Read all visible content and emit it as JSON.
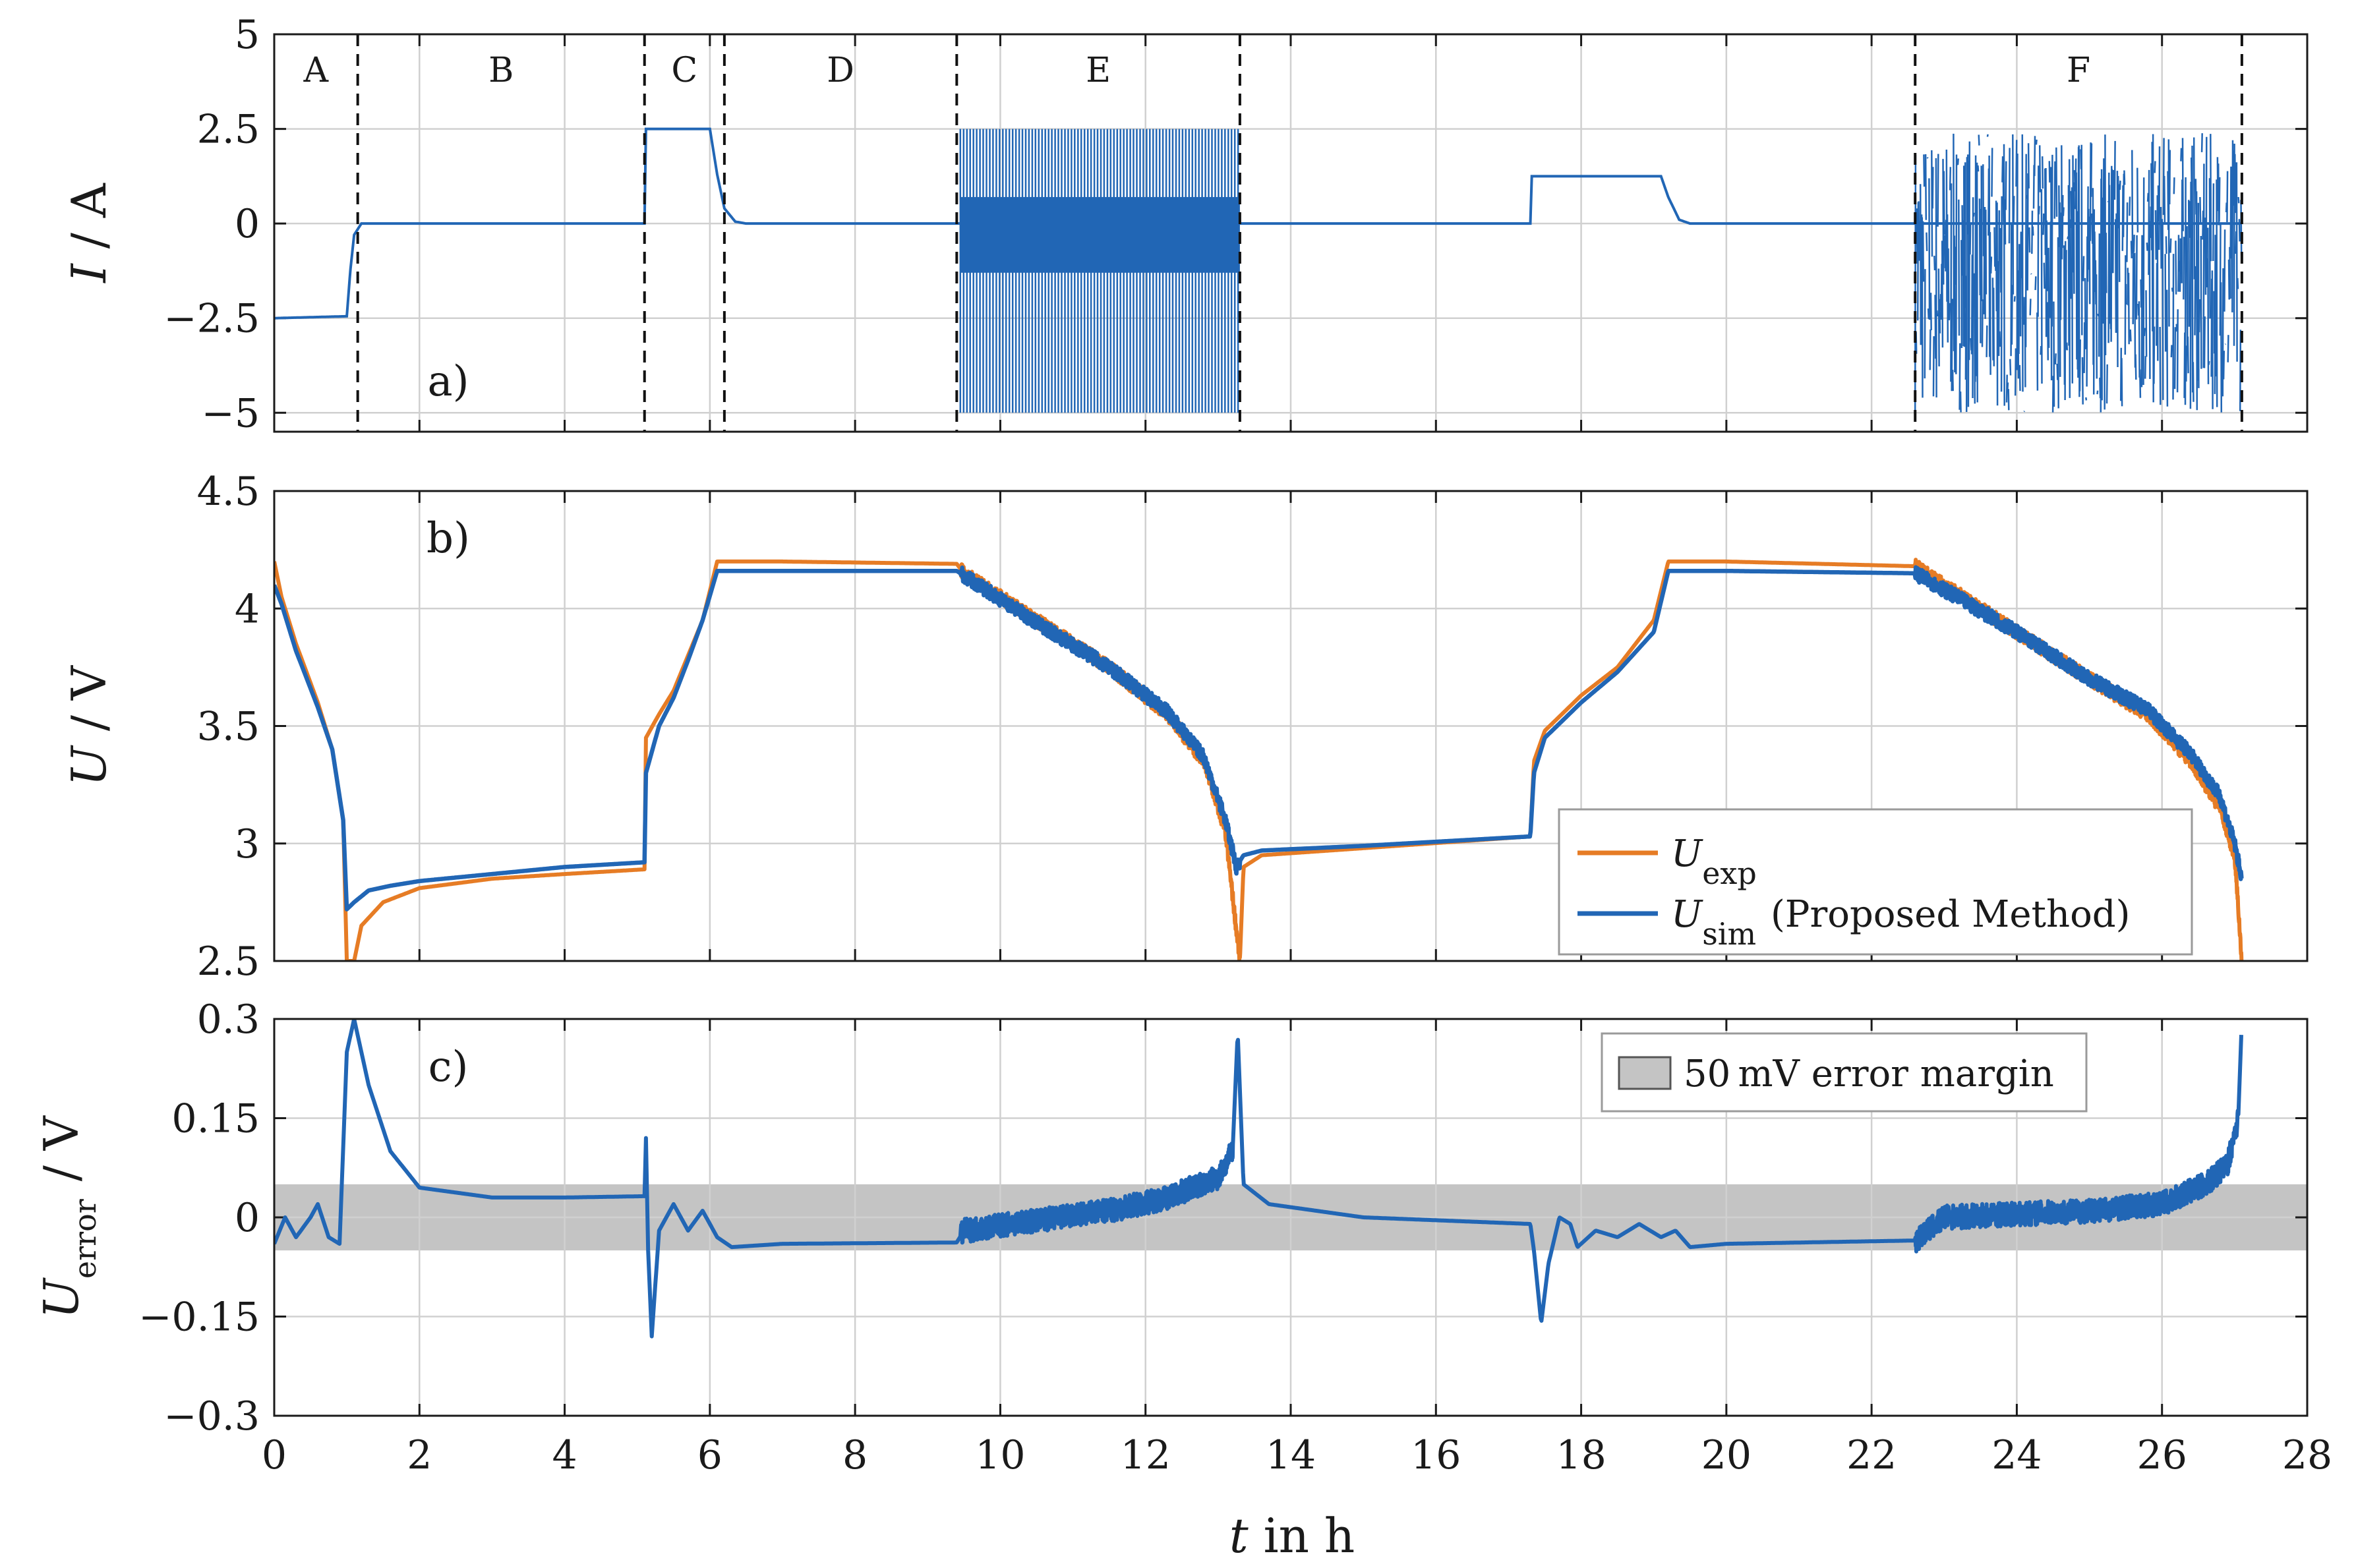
{
  "colors": {
    "current": "#2166b5",
    "u_exp": "#e67c25",
    "u_sim": "#2166b5",
    "margin_band": "#c4c4c4",
    "grid": "#d0d0d0"
  },
  "x_axis": {
    "label_var": "t",
    "label_rest": " in h",
    "ticks": [
      "0",
      "2",
      "4",
      "6",
      "8",
      "10",
      "12",
      "14",
      "16",
      "18",
      "20",
      "22",
      "24",
      "26",
      "28"
    ],
    "lim": [
      0,
      28
    ]
  },
  "chart_data": [
    {
      "type": "line",
      "panel_label": "a)",
      "ylabel_var": "I",
      "ylabel_unit": " / A",
      "ylim": [
        -5.5,
        5
      ],
      "yticks": [
        "5",
        "2.5",
        "0",
        "−2.5",
        "−5"
      ],
      "ytick_values": [
        5,
        2.5,
        0,
        -2.5,
        -5
      ],
      "grid": true,
      "segments": [
        "A",
        "B",
        "C",
        "D",
        "E",
        "F"
      ],
      "segment_boundaries_h": [
        1.15,
        5.1,
        6.2,
        9.4,
        13.3,
        22.6,
        27.1
      ],
      "series": [
        {
          "points": [
            [
              0,
              -2.5
            ],
            [
              1.0,
              -2.45
            ],
            [
              1.05,
              -1.2
            ],
            [
              1.1,
              -0.3
            ],
            [
              1.2,
              0
            ],
            [
              5.1,
              0
            ],
            [
              5.12,
              2.5
            ],
            [
              6.0,
              2.5
            ],
            [
              6.1,
              1.3
            ],
            [
              6.2,
              0.4
            ],
            [
              6.35,
              0.05
            ],
            [
              6.5,
              0
            ],
            [
              9.45,
              0
            ],
            [
              13.3,
              0
            ],
            [
              17.3,
              0
            ],
            [
              17.32,
              1.25
            ],
            [
              19.1,
              1.25
            ],
            [
              19.2,
              0.7
            ],
            [
              19.35,
              0.1
            ],
            [
              19.5,
              0
            ],
            [
              22.6,
              0
            ],
            [
              27.1,
              0
            ]
          ],
          "pulse_blocks": [
            {
              "t_start": 9.45,
              "t_end": 13.3,
              "max": 2.5,
              "min": -5.0,
              "band_max": 0.7,
              "band_min": -1.3
            },
            {
              "t_start": 22.6,
              "t_end": 27.1,
              "max": 2.4,
              "min": -5.0,
              "random": true
            }
          ]
        }
      ]
    },
    {
      "type": "line",
      "panel_label": "b)",
      "ylabel_var": "U",
      "ylabel_unit": " / V",
      "ylim": [
        2.5,
        4.5
      ],
      "yticks": [
        "4.5",
        "4",
        "3.5",
        "3",
        "2.5"
      ],
      "ytick_values": [
        4.5,
        4.0,
        3.5,
        3.0,
        2.5
      ],
      "grid": true,
      "legend_position": "bottom-right",
      "series": [
        {
          "name_var": "U",
          "name_sub": "exp",
          "name_rest": "",
          "points": [
            [
              0,
              4.2
            ],
            [
              0.1,
              4.05
            ],
            [
              0.3,
              3.85
            ],
            [
              0.6,
              3.6
            ],
            [
              0.8,
              3.4
            ],
            [
              0.95,
              3.1
            ],
            [
              1.0,
              2.5
            ],
            [
              1.1,
              2.5
            ],
            [
              1.2,
              2.65
            ],
            [
              1.5,
              2.75
            ],
            [
              2.0,
              2.81
            ],
            [
              3.0,
              2.85
            ],
            [
              4.0,
              2.87
            ],
            [
              5.1,
              2.89
            ],
            [
              5.12,
              3.45
            ],
            [
              5.3,
              3.55
            ],
            [
              5.5,
              3.65
            ],
            [
              5.7,
              3.8
            ],
            [
              5.9,
              3.95
            ],
            [
              6.1,
              4.2
            ],
            [
              7.0,
              4.2
            ],
            [
              9.4,
              4.19
            ],
            [
              9.5,
              4.15
            ],
            [
              10.5,
              3.95
            ],
            [
              11.5,
              3.75
            ],
            [
              12.3,
              3.55
            ],
            [
              12.8,
              3.35
            ],
            [
              13.1,
              3.05
            ],
            [
              13.3,
              2.5
            ],
            [
              13.35,
              2.9
            ],
            [
              13.6,
              2.95
            ],
            [
              15.0,
              2.98
            ],
            [
              17.3,
              3.03
            ],
            [
              17.35,
              3.35
            ],
            [
              17.5,
              3.48
            ],
            [
              18.0,
              3.63
            ],
            [
              18.5,
              3.75
            ],
            [
              19.0,
              3.95
            ],
            [
              19.2,
              4.2
            ],
            [
              20.0,
              4.2
            ],
            [
              22.6,
              4.18
            ],
            [
              23.0,
              4.1
            ],
            [
              24.0,
              3.9
            ],
            [
              25.0,
              3.7
            ],
            [
              25.8,
              3.55
            ],
            [
              26.4,
              3.35
            ],
            [
              26.8,
              3.15
            ],
            [
              27.0,
              2.95
            ],
            [
              27.1,
              2.5
            ]
          ]
        },
        {
          "name_var": "U",
          "name_sub": "sim",
          "name_rest": " (Proposed Method)",
          "points": [
            [
              0,
              4.1
            ],
            [
              0.1,
              4.02
            ],
            [
              0.3,
              3.82
            ],
            [
              0.6,
              3.58
            ],
            [
              0.8,
              3.4
            ],
            [
              0.95,
              3.1
            ],
            [
              1.0,
              2.72
            ],
            [
              1.1,
              2.75
            ],
            [
              1.3,
              2.8
            ],
            [
              1.6,
              2.82
            ],
            [
              2.0,
              2.84
            ],
            [
              3.0,
              2.87
            ],
            [
              4.0,
              2.9
            ],
            [
              5.1,
              2.92
            ],
            [
              5.12,
              3.3
            ],
            [
              5.3,
              3.5
            ],
            [
              5.5,
              3.62
            ],
            [
              5.7,
              3.78
            ],
            [
              5.9,
              3.95
            ],
            [
              6.1,
              4.16
            ],
            [
              7.0,
              4.16
            ],
            [
              9.4,
              4.16
            ],
            [
              9.5,
              4.14
            ],
            [
              10.5,
              3.94
            ],
            [
              11.5,
              3.75
            ],
            [
              12.3,
              3.56
            ],
            [
              12.8,
              3.37
            ],
            [
              13.1,
              3.1
            ],
            [
              13.25,
              2.9
            ],
            [
              13.35,
              2.95
            ],
            [
              13.6,
              2.97
            ],
            [
              15.0,
              2.99
            ],
            [
              17.3,
              3.03
            ],
            [
              17.35,
              3.3
            ],
            [
              17.5,
              3.45
            ],
            [
              18.0,
              3.6
            ],
            [
              18.5,
              3.73
            ],
            [
              19.0,
              3.9
            ],
            [
              19.2,
              4.16
            ],
            [
              20.0,
              4.16
            ],
            [
              22.6,
              4.15
            ],
            [
              23.0,
              4.08
            ],
            [
              24.0,
              3.9
            ],
            [
              25.0,
              3.7
            ],
            [
              25.8,
              3.57
            ],
            [
              26.4,
              3.38
            ],
            [
              26.8,
              3.2
            ],
            [
              27.0,
              3.0
            ],
            [
              27.1,
              2.85
            ]
          ]
        }
      ],
      "noise_intervals_h": [
        [
          9.45,
          13.3
        ],
        [
          22.6,
          27.1
        ]
      ]
    },
    {
      "type": "line",
      "panel_label": "c)",
      "ylabel_var": "U",
      "ylabel_sub": "error",
      "ylabel_unit": " / V",
      "ylim": [
        -0.3,
        0.3
      ],
      "yticks": [
        "0.3",
        "0.15",
        "0",
        "−0.15",
        "−0.3"
      ],
      "ytick_values": [
        0.3,
        0.15,
        0,
        -0.15,
        -0.3
      ],
      "grid": true,
      "error_band": [
        -0.05,
        0.05
      ],
      "legend_text": "50 mV error margin",
      "legend_position": "top-right",
      "series": [
        {
          "points": [
            [
              0,
              -0.04
            ],
            [
              0.15,
              0.0
            ],
            [
              0.3,
              -0.03
            ],
            [
              0.5,
              0.0
            ],
            [
              0.6,
              0.02
            ],
            [
              0.75,
              -0.03
            ],
            [
              0.9,
              -0.04
            ],
            [
              1.0,
              0.25
            ],
            [
              1.1,
              0.3
            ],
            [
              1.3,
              0.2
            ],
            [
              1.6,
              0.1
            ],
            [
              2.0,
              0.045
            ],
            [
              3.0,
              0.03
            ],
            [
              4.0,
              0.03
            ],
            [
              5.1,
              0.032
            ],
            [
              5.12,
              0.12
            ],
            [
              5.15,
              -0.05
            ],
            [
              5.2,
              -0.18
            ],
            [
              5.3,
              -0.02
            ],
            [
              5.5,
              0.02
            ],
            [
              5.7,
              -0.02
            ],
            [
              5.9,
              0.01
            ],
            [
              6.1,
              -0.03
            ],
            [
              6.3,
              -0.045
            ],
            [
              7.0,
              -0.04
            ],
            [
              9.4,
              -0.038
            ],
            [
              9.5,
              -0.02
            ],
            [
              10.5,
              -0.005
            ],
            [
              11.5,
              0.01
            ],
            [
              12.3,
              0.03
            ],
            [
              13.0,
              0.06
            ],
            [
              13.2,
              0.1
            ],
            [
              13.27,
              0.28
            ],
            [
              13.35,
              0.05
            ],
            [
              13.7,
              0.02
            ],
            [
              15.0,
              0.0
            ],
            [
              17.3,
              -0.01
            ],
            [
              17.35,
              -0.05
            ],
            [
              17.45,
              -0.16
            ],
            [
              17.55,
              -0.07
            ],
            [
              17.7,
              0.0
            ],
            [
              17.85,
              -0.01
            ],
            [
              17.95,
              -0.045
            ],
            [
              18.2,
              -0.02
            ],
            [
              18.5,
              -0.03
            ],
            [
              18.8,
              -0.01
            ],
            [
              19.1,
              -0.03
            ],
            [
              19.3,
              -0.02
            ],
            [
              19.5,
              -0.045
            ],
            [
              20.0,
              -0.04
            ],
            [
              22.6,
              -0.035
            ],
            [
              23.0,
              0.0
            ],
            [
              24.0,
              0.005
            ],
            [
              25.0,
              0.01
            ],
            [
              26.0,
              0.02
            ],
            [
              26.6,
              0.05
            ],
            [
              26.9,
              0.08
            ],
            [
              27.05,
              0.15
            ],
            [
              27.1,
              0.3
            ]
          ]
        }
      ],
      "noise_intervals_h": [
        [
          9.45,
          13.2
        ],
        [
          22.6,
          27.05
        ]
      ]
    }
  ]
}
